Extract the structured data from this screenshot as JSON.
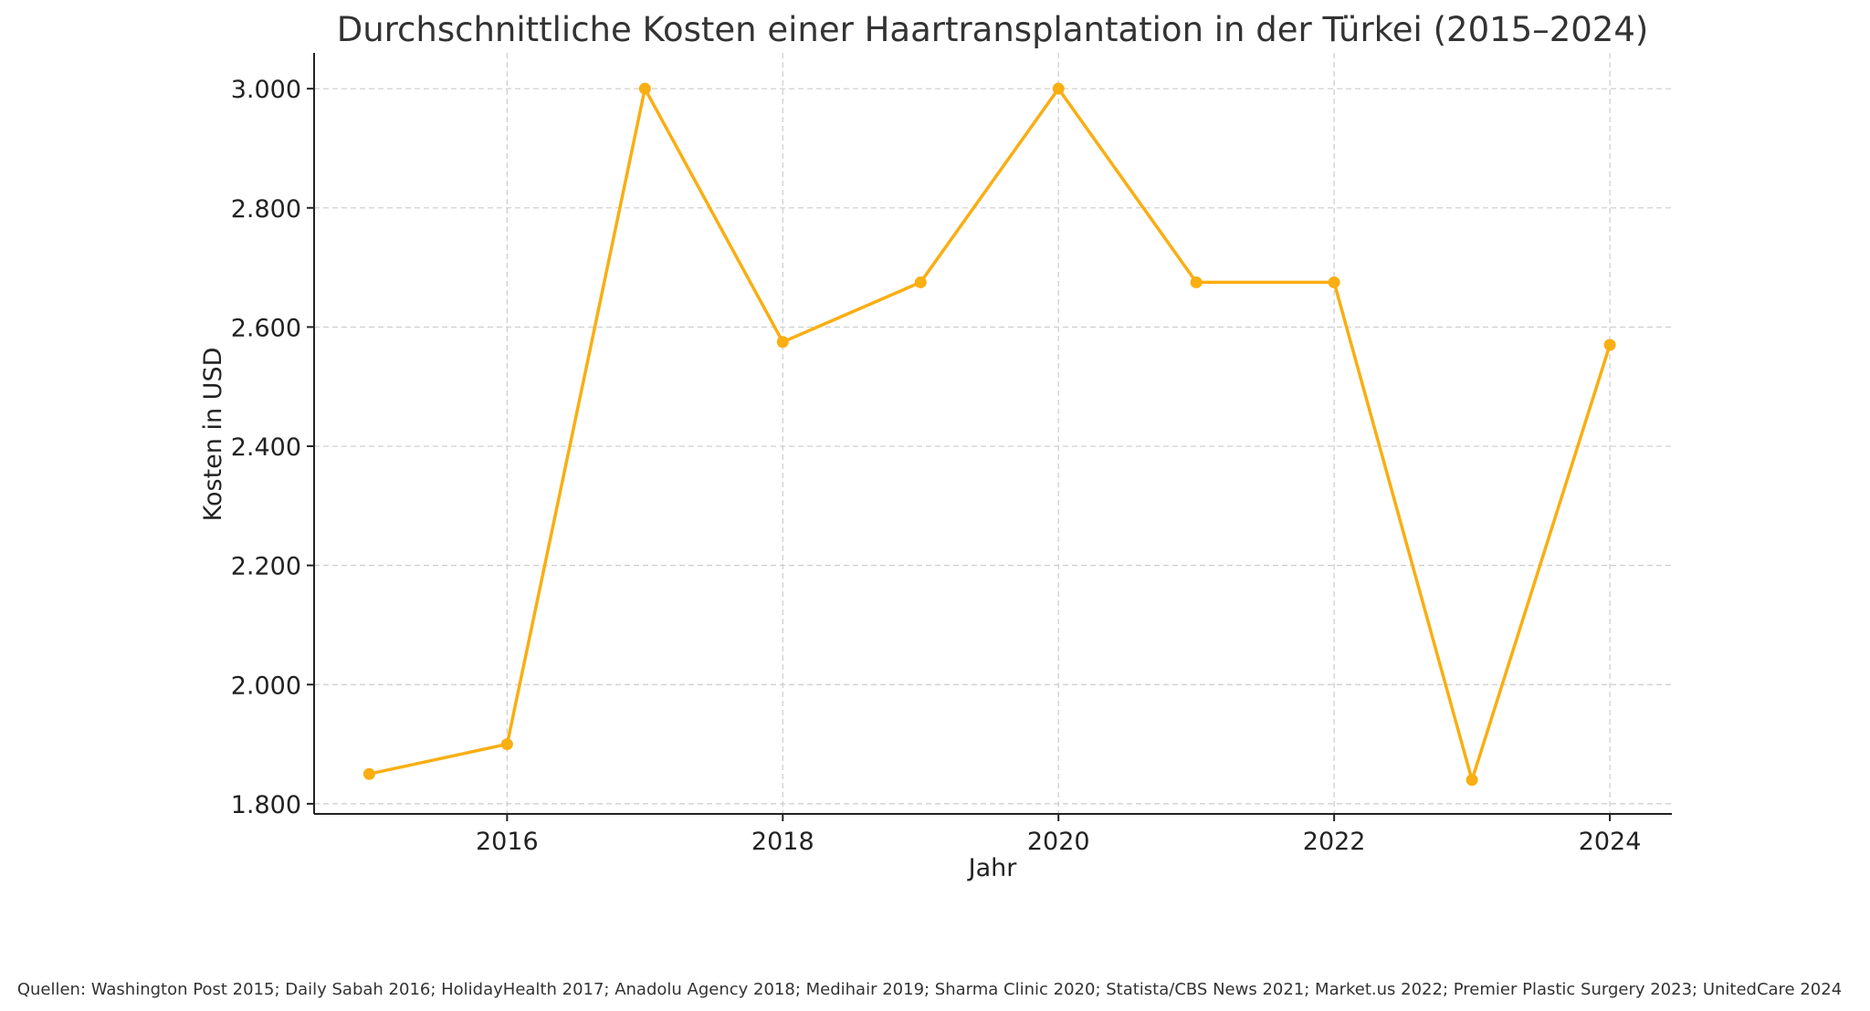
{
  "chart_data": {
    "type": "line",
    "title": "Durchschnittliche Kosten einer Haartransplantation in der Türkei (2015–2024)",
    "xlabel": "Jahr",
    "ylabel": "Kosten in USD",
    "x": [
      2015,
      2016,
      2017,
      2018,
      2019,
      2020,
      2021,
      2022,
      2023,
      2024
    ],
    "series": [
      {
        "values": [
          1850,
          1900,
          3000,
          2575,
          2675,
          3000,
          2675,
          2675,
          1840,
          2570
        ]
      }
    ],
    "xlim": [
      2014.6,
      2024.45
    ],
    "ylim": [
      1783,
      3060
    ],
    "x_ticks": [
      2016,
      2018,
      2020,
      2022,
      2024
    ],
    "x_tick_labels": [
      "2016",
      "2018",
      "2020",
      "2022",
      "2024"
    ],
    "y_ticks": [
      1800,
      2000,
      2200,
      2400,
      2600,
      2800,
      3000
    ],
    "y_tick_labels": [
      "1.800",
      "2.000",
      "2.200",
      "2.400",
      "2.600",
      "2.800",
      "3.000"
    ],
    "grid": true,
    "line_color": "#F9AE12",
    "source_note": "Quellen: Washington Post 2015; Daily Sabah 2016; HolidayHealth 2017; Anadolu Agency 2018; Medihair 2019; Sharma Clinic 2020; Statista/CBS News 2021; Market.us 2022; Premier Plastic Surgery 2023; UnitedCare 2024"
  }
}
